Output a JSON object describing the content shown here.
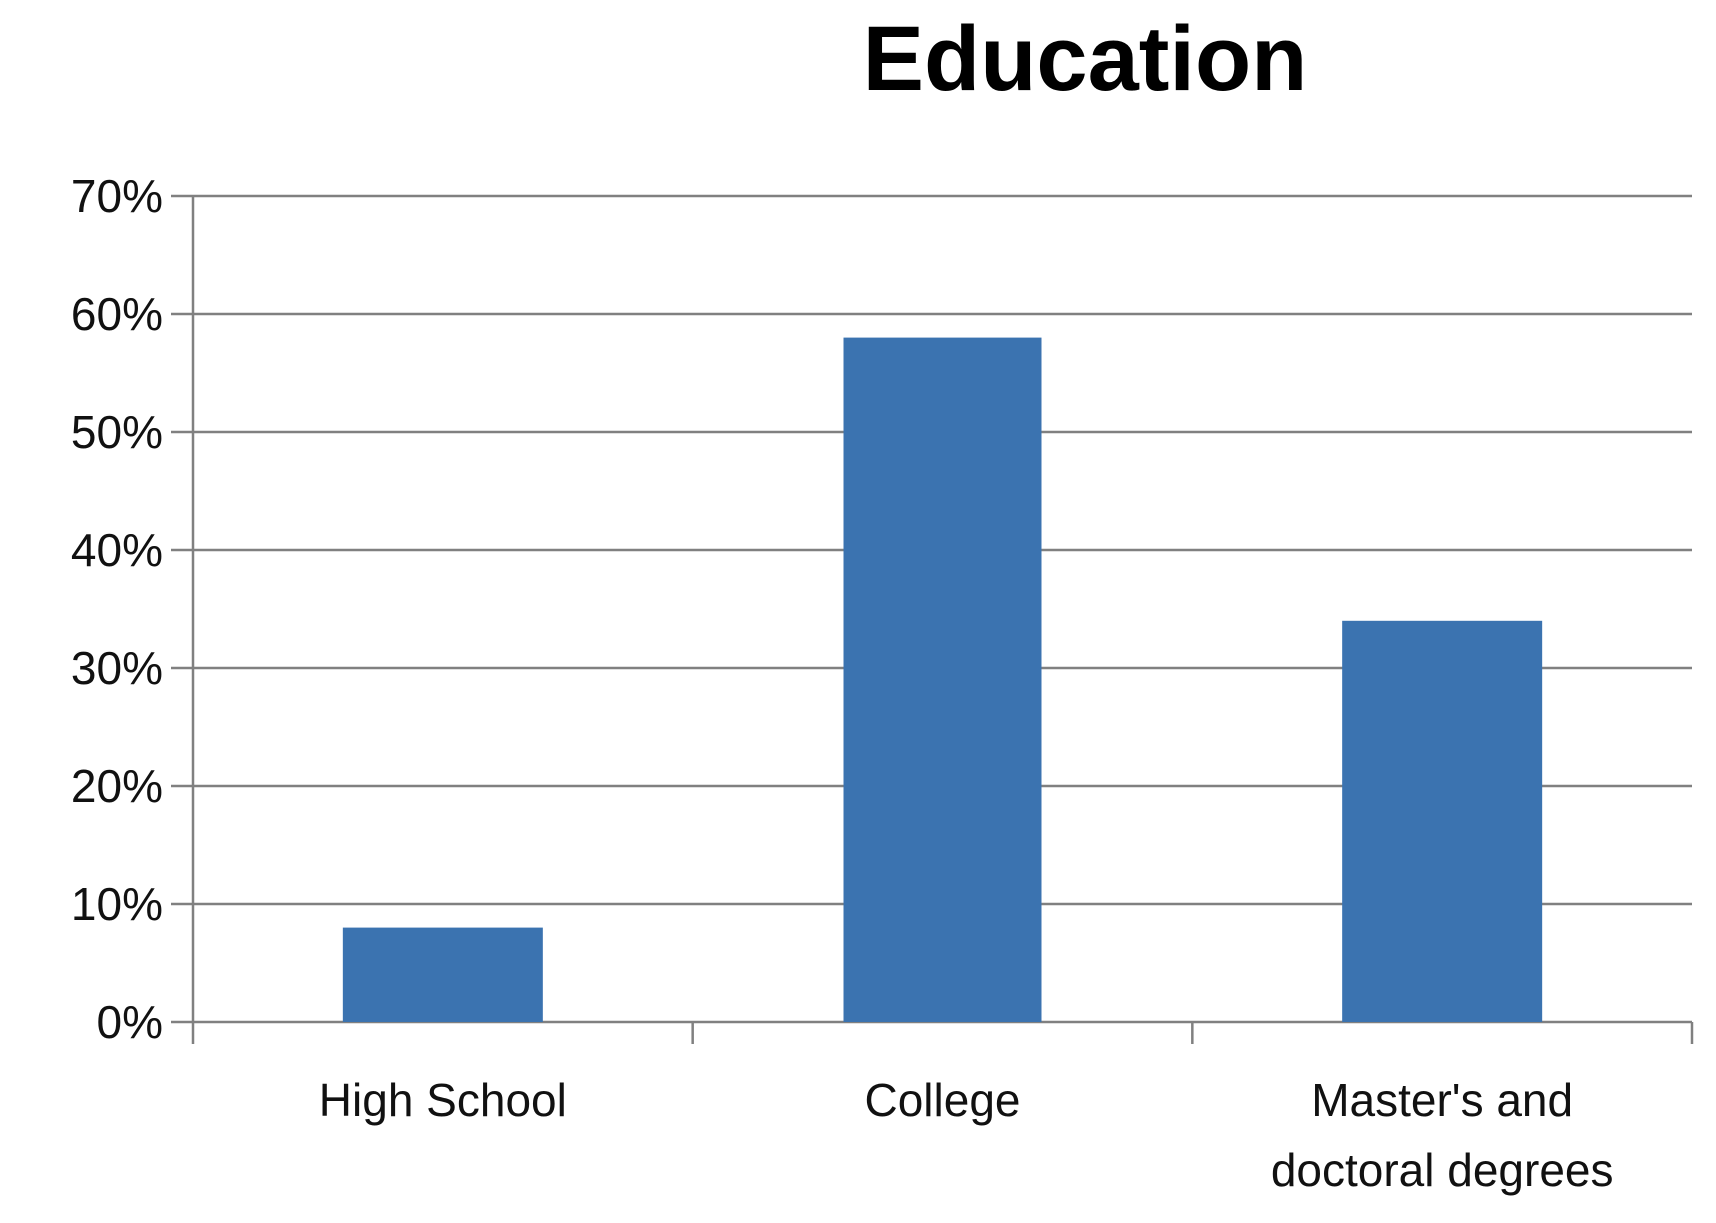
{
  "chart_data": {
    "type": "bar",
    "title": "Education",
    "categories": [
      [
        "High School"
      ],
      [
        "College"
      ],
      [
        "Master's and",
        "doctoral degrees"
      ]
    ],
    "values": [
      8,
      58,
      34
    ],
    "y_unit": "%",
    "ylim": [
      0,
      70
    ],
    "y_ticks": [
      0,
      10,
      20,
      30,
      40,
      50,
      60,
      70
    ],
    "y_tick_labels": [
      "0%",
      "10%",
      "20%",
      "30%",
      "40%",
      "50%",
      "60%",
      "70%"
    ],
    "xlabel": "",
    "ylabel": "",
    "grid": true,
    "legend": "none",
    "colors": {
      "bar": "#3b73b0",
      "grid": "#808080",
      "axis": "#808080",
      "text": "#111111"
    }
  }
}
